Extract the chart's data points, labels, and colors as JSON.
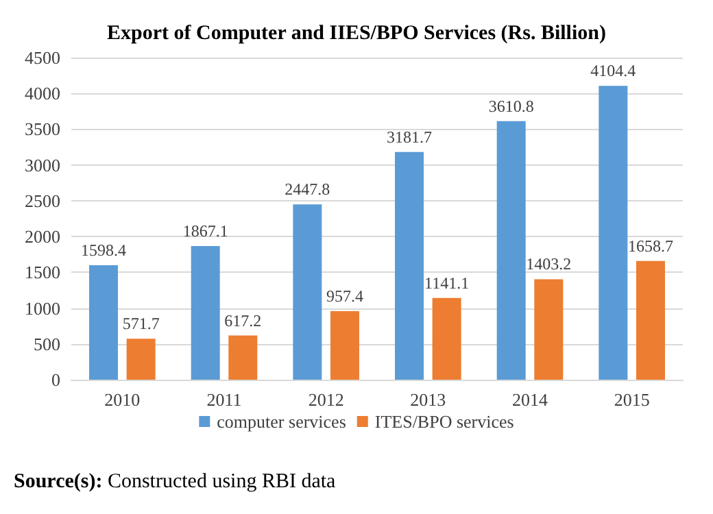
{
  "chart_data": {
    "type": "bar",
    "title": "Export of Computer and IIES/BPO Services (Rs. Billion)",
    "categories": [
      "2010",
      "2011",
      "2012",
      "2013",
      "2014",
      "2015"
    ],
    "series": [
      {
        "name": "computer services",
        "color": "#5b9bd5",
        "values": [
          1598.4,
          1867.1,
          2447.8,
          3181.7,
          3610.8,
          4104.4
        ]
      },
      {
        "name": "ITES/BPO services",
        "color": "#ed7d31",
        "values": [
          571.7,
          617.2,
          957.4,
          1141.1,
          1403.2,
          1658.7
        ]
      }
    ],
    "ylim": [
      0,
      4500
    ],
    "yticks": [
      0,
      500,
      1000,
      1500,
      2000,
      2500,
      3000,
      3500,
      4000,
      4500
    ],
    "grid": "y",
    "legend": "bottom",
    "data_labels": true,
    "annotations": [
      "Source(s): Constructed using RBI data"
    ]
  }
}
